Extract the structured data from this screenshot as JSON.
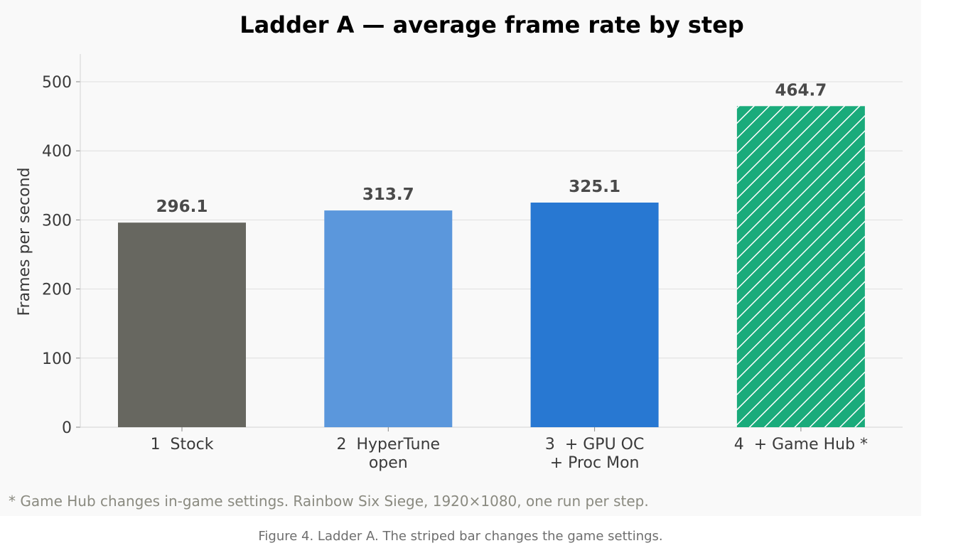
{
  "chart_data": {
    "type": "bar",
    "title": "Ladder A — average frame rate by step",
    "ylabel": "Frames per second",
    "xlabel": "",
    "ylim": [
      0,
      540
    ],
    "yticks": [
      0,
      100,
      200,
      300,
      400,
      500
    ],
    "grid": true,
    "categories": [
      [
        "1  Stock"
      ],
      [
        "2  HyperTune",
        "open"
      ],
      [
        "3  + GPU OC",
        "+ Proc Mon"
      ],
      [
        "4  + Game Hub *"
      ]
    ],
    "values": [
      296.1,
      313.7,
      325.1,
      464.7
    ],
    "value_labels": [
      "296.1",
      "313.7",
      "325.1",
      "464.7"
    ],
    "colors": [
      "#676760",
      "#5b97dc",
      "#2878d2",
      "#1aab7b"
    ],
    "hatched": [
      false,
      false,
      false,
      true
    ],
    "footnote": "* Game Hub changes in-game settings. Rainbow Six Siege, 1920×1080, one run per step."
  },
  "caption": "Figure 4. Ladder A. The striped bar changes the game settings."
}
